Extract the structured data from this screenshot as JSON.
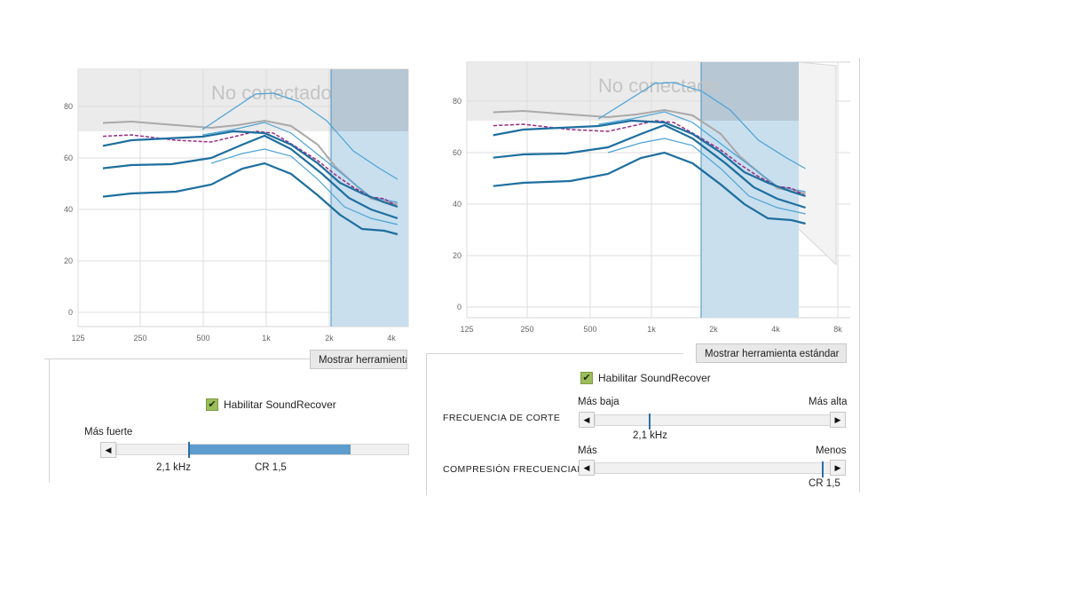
{
  "left_panel": {
    "watermark": "No conectado",
    "y_ticks": [
      "80",
      "60",
      "40",
      "20",
      "0"
    ],
    "x_ticks": [
      "125",
      "250",
      "500",
      "1k",
      "2k",
      "4k"
    ],
    "show_tool_button": "Mostrar herramienta",
    "enable_label": "Habilitar SoundRecover",
    "strength_label": "Más fuerte",
    "cutoff_value": "2,1 kHz",
    "ratio_value": "CR 1,5"
  },
  "right_panel": {
    "watermark": "No conectado",
    "y_ticks": [
      "80",
      "60",
      "40",
      "20",
      "0"
    ],
    "x_ticks": [
      "125",
      "250",
      "500",
      "1k",
      "2k",
      "4k",
      "8k"
    ],
    "show_tool_button": "Mostrar herramienta estándar",
    "enable_label": "Habilitar SoundRecover",
    "cutoff_title": "FRECUENCIA DE CORTE",
    "cutoff_low": "Más baja",
    "cutoff_high": "Más alta",
    "cutoff_value": "2,1 kHz",
    "compression_title": "COMPRESIÓN FRECUENCIAL",
    "compression_more": "Más",
    "compression_less": "Menos",
    "compression_value": "CR 1,5"
  },
  "icons": {
    "check": "check-icon",
    "arrow_left": "arrow-left-icon",
    "arrow_right": "arrow-right-icon"
  },
  "colors": {
    "plot_bg": "#ffffff",
    "upper_band": "#ebebeb",
    "shaded_region": "#c9dfee",
    "shaded_region_dark": "#b7c7d4",
    "curve_dark": "#1e6f9f",
    "curve_light": "#4da3d6",
    "curve_gray": "#a9a9a9",
    "curve_dashed": "#9a2b83",
    "slider_fill": "#5d9ccd",
    "check_green": "#9bbe5a"
  }
}
